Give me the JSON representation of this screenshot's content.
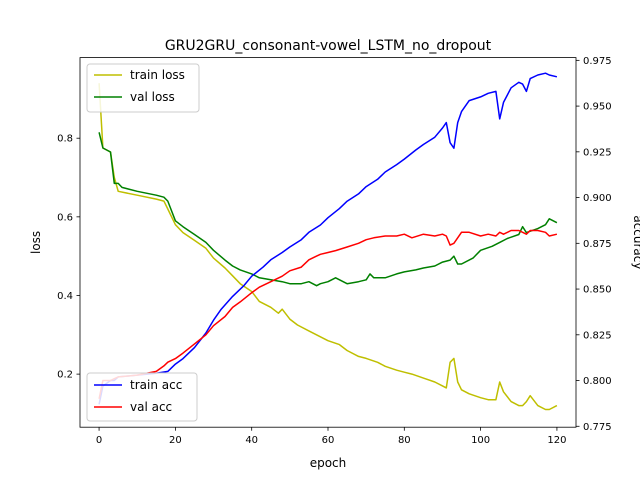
{
  "chart_data": {
    "type": "line",
    "title": "GRU2GRU_consonant-vowel_LSTM_no_dropout",
    "xlabel": "epoch",
    "ylabel_left": "loss",
    "ylabel_right": "accuracy",
    "xlim": [
      -5,
      125
    ],
    "ylim_left": [
      0.065,
      1.005
    ],
    "ylim_right": [
      0.7745,
      0.9765
    ],
    "xticks": [
      0,
      20,
      40,
      60,
      80,
      100,
      120
    ],
    "yticks_left": [
      0.2,
      0.4,
      0.6,
      0.8
    ],
    "yticks_right": [
      0.775,
      0.8,
      0.825,
      0.85,
      0.875,
      0.9,
      0.925,
      0.95,
      0.975
    ],
    "grid": false,
    "legends": [
      {
        "position": "upper-left",
        "entries": [
          {
            "name": "train loss",
            "color": "#bfbf00"
          },
          {
            "name": "val loss",
            "color": "#008000"
          }
        ]
      },
      {
        "position": "lower-left",
        "entries": [
          {
            "name": "train acc",
            "color": "#0000ff"
          },
          {
            "name": "val acc",
            "color": "#ff0000"
          }
        ]
      }
    ],
    "series": [
      {
        "name": "train loss",
        "axis": "left",
        "color": "#bfbf00",
        "x": [
          0,
          1,
          3,
          4,
          5,
          10,
          15,
          17,
          18,
          20,
          22,
          25,
          28,
          30,
          33,
          35,
          37,
          40,
          42,
          45,
          47,
          48,
          50,
          52,
          55,
          58,
          60,
          63,
          65,
          68,
          70,
          73,
          75,
          78,
          80,
          82,
          85,
          88,
          90,
          91,
          92,
          93,
          94,
          95,
          97,
          100,
          102,
          104,
          105,
          106,
          108,
          110,
          111,
          112,
          113,
          115,
          117,
          118,
          120
        ],
        "y": [
          0.94,
          0.775,
          0.765,
          0.7,
          0.665,
          0.655,
          0.645,
          0.64,
          0.62,
          0.58,
          0.56,
          0.54,
          0.52,
          0.495,
          0.47,
          0.45,
          0.43,
          0.41,
          0.385,
          0.37,
          0.355,
          0.365,
          0.34,
          0.325,
          0.31,
          0.295,
          0.285,
          0.275,
          0.26,
          0.245,
          0.24,
          0.23,
          0.22,
          0.21,
          0.205,
          0.2,
          0.19,
          0.18,
          0.17,
          0.165,
          0.23,
          0.24,
          0.18,
          0.16,
          0.15,
          0.14,
          0.135,
          0.135,
          0.18,
          0.155,
          0.13,
          0.12,
          0.12,
          0.13,
          0.145,
          0.12,
          0.11,
          0.11,
          0.12
        ]
      },
      {
        "name": "val loss",
        "axis": "left",
        "color": "#008000",
        "x": [
          0,
          1,
          3,
          4,
          5,
          6,
          10,
          15,
          17,
          18,
          20,
          22,
          25,
          28,
          30,
          33,
          35,
          37,
          40,
          42,
          45,
          48,
          50,
          53,
          55,
          57,
          58,
          60,
          62,
          65,
          68,
          70,
          71,
          72,
          75,
          78,
          80,
          83,
          85,
          88,
          90,
          92,
          93,
          94,
          95,
          98,
          100,
          103,
          105,
          107,
          110,
          111,
          112,
          115,
          117,
          118,
          120
        ],
        "y": [
          0.815,
          0.775,
          0.765,
          0.685,
          0.685,
          0.675,
          0.665,
          0.655,
          0.65,
          0.64,
          0.59,
          0.575,
          0.555,
          0.535,
          0.515,
          0.49,
          0.475,
          0.465,
          0.455,
          0.445,
          0.44,
          0.435,
          0.43,
          0.43,
          0.435,
          0.425,
          0.43,
          0.435,
          0.445,
          0.43,
          0.435,
          0.44,
          0.455,
          0.445,
          0.445,
          0.455,
          0.46,
          0.465,
          0.47,
          0.475,
          0.485,
          0.49,
          0.5,
          0.48,
          0.48,
          0.495,
          0.515,
          0.525,
          0.535,
          0.545,
          0.555,
          0.575,
          0.56,
          0.57,
          0.58,
          0.595,
          0.585
        ]
      },
      {
        "name": "train acc",
        "axis": "right",
        "color": "#0000ff",
        "x": [
          0,
          1,
          3,
          4,
          5,
          10,
          15,
          18,
          20,
          22,
          25,
          28,
          30,
          32,
          35,
          38,
          40,
          43,
          45,
          48,
          50,
          53,
          55,
          58,
          60,
          63,
          65,
          68,
          70,
          73,
          75,
          78,
          80,
          83,
          85,
          88,
          90,
          91,
          92,
          93,
          94,
          95,
          97,
          100,
          102,
          104,
          105,
          106,
          108,
          110,
          111,
          112,
          113,
          115,
          117,
          118,
          120
        ],
        "y": [
          0.787,
          0.797,
          0.8,
          0.8,
          0.802,
          0.803,
          0.804,
          0.805,
          0.809,
          0.812,
          0.818,
          0.826,
          0.833,
          0.839,
          0.846,
          0.852,
          0.857,
          0.862,
          0.866,
          0.87,
          0.873,
          0.877,
          0.881,
          0.885,
          0.889,
          0.894,
          0.898,
          0.902,
          0.906,
          0.91,
          0.914,
          0.918,
          0.921,
          0.926,
          0.929,
          0.933,
          0.938,
          0.941,
          0.93,
          0.927,
          0.941,
          0.947,
          0.953,
          0.955,
          0.957,
          0.958,
          0.943,
          0.952,
          0.96,
          0.963,
          0.962,
          0.958,
          0.965,
          0.967,
          0.968,
          0.967,
          0.966
        ]
      },
      {
        "name": "val acc",
        "axis": "right",
        "color": "#ff0000",
        "x": [
          0,
          1,
          3,
          4,
          5,
          10,
          15,
          17,
          18,
          20,
          22,
          25,
          28,
          30,
          33,
          35,
          37,
          40,
          42,
          45,
          48,
          50,
          53,
          55,
          57,
          58,
          60,
          62,
          65,
          68,
          70,
          72,
          75,
          78,
          80,
          82,
          85,
          88,
          90,
          91,
          92,
          93,
          94,
          95,
          97,
          100,
          102,
          104,
          105,
          106,
          108,
          110,
          111,
          112,
          113,
          115,
          117,
          118,
          120
        ],
        "y": [
          0.79,
          0.8,
          0.8,
          0.801,
          0.802,
          0.803,
          0.805,
          0.808,
          0.81,
          0.812,
          0.815,
          0.82,
          0.825,
          0.83,
          0.835,
          0.84,
          0.843,
          0.848,
          0.851,
          0.854,
          0.857,
          0.86,
          0.862,
          0.866,
          0.868,
          0.869,
          0.87,
          0.871,
          0.873,
          0.875,
          0.877,
          0.878,
          0.879,
          0.879,
          0.88,
          0.878,
          0.88,
          0.879,
          0.88,
          0.879,
          0.874,
          0.875,
          0.878,
          0.881,
          0.881,
          0.879,
          0.88,
          0.879,
          0.881,
          0.88,
          0.882,
          0.882,
          0.881,
          0.88,
          0.882,
          0.882,
          0.881,
          0.879,
          0.88
        ]
      }
    ]
  }
}
